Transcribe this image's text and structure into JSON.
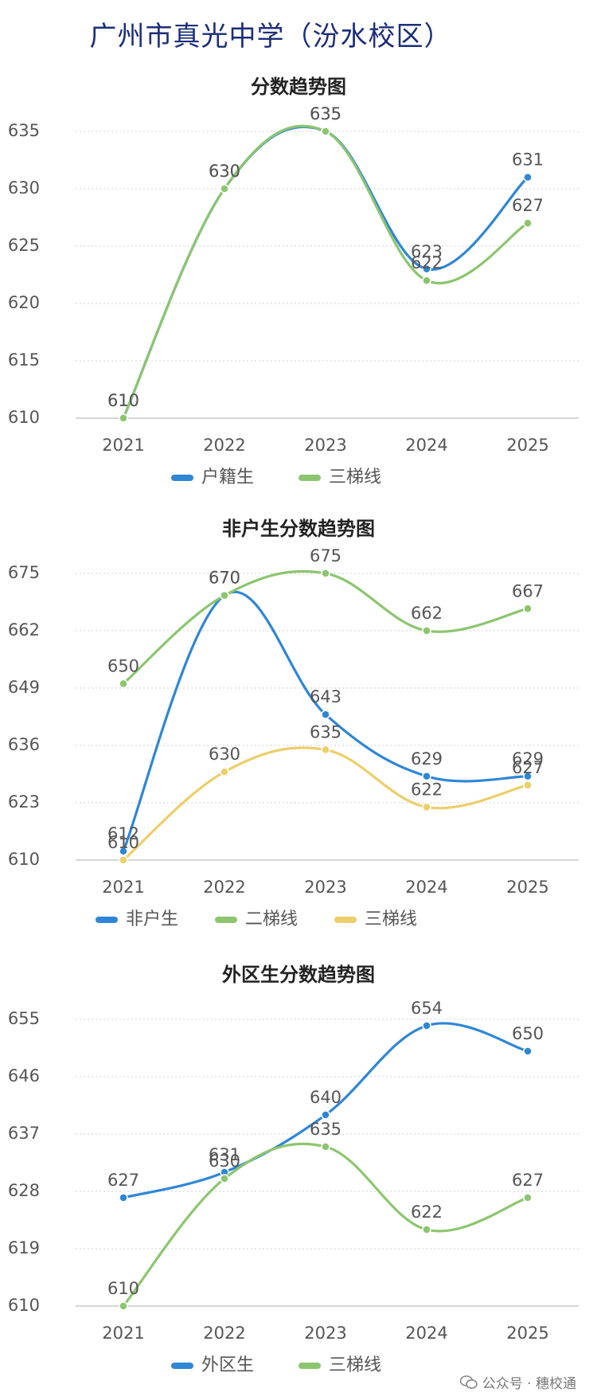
{
  "page": {
    "title": "广州市真光中学（汾水校区）",
    "watermark": "公众号 · 穗校通",
    "watermark_icon": "wechat-icon"
  },
  "chart_data": [
    {
      "type": "line",
      "title": "分数趋势图",
      "categories": [
        "2021",
        "2022",
        "2023",
        "2024",
        "2025"
      ],
      "yticks": [
        "610",
        "615",
        "620",
        "625",
        "630",
        "635"
      ],
      "ylim": [
        610,
        635
      ],
      "grid": true,
      "legend_position": "bottom",
      "series": [
        {
          "name": "户籍生",
          "color": "#2f86d6",
          "values": [
            610,
            630,
            635,
            623,
            631
          ]
        },
        {
          "name": "三梯线",
          "color": "#8cc56f",
          "values": [
            610,
            630,
            635,
            622,
            627
          ]
        }
      ]
    },
    {
      "type": "line",
      "title": "非户生分数趋势图",
      "categories": [
        "2021",
        "2022",
        "2023",
        "2024",
        "2025"
      ],
      "yticks": [
        "610",
        "623",
        "636",
        "649",
        "662",
        "675"
      ],
      "ylim": [
        610,
        675
      ],
      "grid": true,
      "legend_position": "bottom",
      "series": [
        {
          "name": "非户生",
          "color": "#2f86d6",
          "values": [
            612,
            670,
            643,
            629,
            629
          ]
        },
        {
          "name": "二梯线",
          "color": "#8cc56f",
          "values": [
            650,
            670,
            675,
            662,
            667
          ]
        },
        {
          "name": "三梯线",
          "color": "#ecce6a",
          "values": [
            610,
            630,
            635,
            622,
            627
          ]
        }
      ]
    },
    {
      "type": "line",
      "title": "外区生分数趋势图",
      "categories": [
        "2021",
        "2022",
        "2023",
        "2024",
        "2025"
      ],
      "yticks": [
        "610",
        "619",
        "628",
        "637",
        "646",
        "655"
      ],
      "ylim": [
        610,
        655
      ],
      "grid": true,
      "legend_position": "bottom",
      "series": [
        {
          "name": "外区生",
          "color": "#2f86d6",
          "values": [
            627,
            631,
            640,
            654,
            650
          ]
        },
        {
          "name": "三梯线",
          "color": "#8cc56f",
          "values": [
            610,
            630,
            635,
            622,
            627
          ]
        }
      ]
    }
  ]
}
